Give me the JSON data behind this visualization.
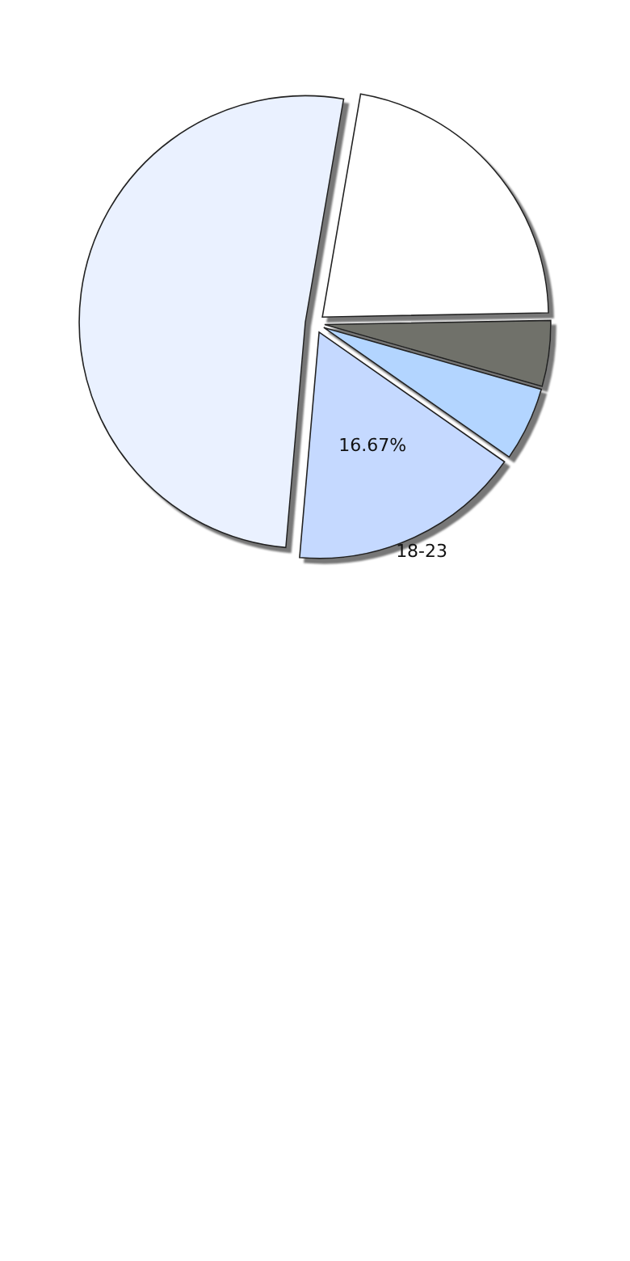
{
  "chart_data": {
    "type": "pie",
    "categories": [
      null,
      null,
      null,
      "18-23",
      null
    ],
    "values": [
      22.0,
      4.7,
      5.3,
      16.67,
      51.33
    ],
    "colors": [
      "#ffffff",
      "#6f716b",
      "#b3d5ff",
      "#c5d9ff",
      "#eaf1ff"
    ],
    "value_labels": [
      null,
      null,
      null,
      "16.67%",
      null
    ]
  }
}
